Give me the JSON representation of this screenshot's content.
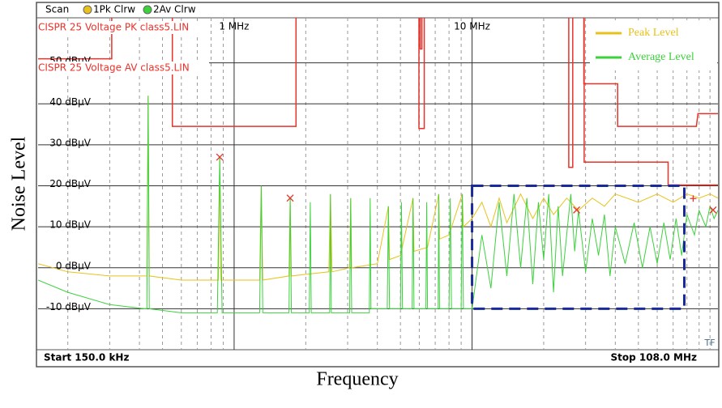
{
  "chart_data": {
    "type": "line",
    "header": {
      "title": "Scan",
      "trace1": "1Pk Clrw",
      "trace2": "2Av Clrw"
    },
    "x_label": "Frequency",
    "y_label": "Noise Level",
    "start_label": "Start 150.0 kHz",
    "stop_label": "Stop 108.0 MHz",
    "corner_label": "TF",
    "log_x": true,
    "grid": true,
    "legend": "top-right",
    "xlim": [
      0.15,
      108
    ],
    "ylim": [
      -20,
      61
    ],
    "xticks": [
      {
        "value": 1,
        "label": "1 MHz"
      },
      {
        "value": 10,
        "label": "10 MHz"
      }
    ],
    "x_minor_gridlines": [
      0.2,
      0.3,
      0.4,
      0.5,
      0.6,
      0.7,
      0.8,
      0.9,
      2,
      3,
      4,
      5,
      6,
      7,
      8,
      9,
      20,
      30,
      40,
      50,
      60,
      70,
      80,
      90,
      100
    ],
    "yticks": [
      {
        "value": -10,
        "label": "-10 dBµV"
      },
      {
        "value": 0,
        "label": "0 dBµV"
      },
      {
        "value": 10,
        "label": "10 dBµV"
      },
      {
        "value": 20,
        "label": "20 dBµV"
      },
      {
        "value": 30,
        "label": "30 dBµV"
      },
      {
        "value": 40,
        "label": "40 dBµV"
      },
      {
        "value": 50,
        "label": "50 dBµV"
      }
    ],
    "series": [
      {
        "name": "Peak Level",
        "color": "#e8c21a",
        "x": [
          0.15,
          0.2,
          0.3,
          0.43,
          0.435,
          0.44,
          0.6,
          0.86,
          0.87,
          0.88,
          1.28,
          1.3,
          1.32,
          1.7,
          1.72,
          1.74,
          2.5,
          2.54,
          2.58,
          3.06,
          3.09,
          3.12,
          4,
          4.45,
          4.5,
          5,
          5.65,
          5.7,
          6.5,
          7.25,
          7.3,
          8,
          9.1,
          9.2,
          10,
          11,
          12,
          13,
          14,
          16,
          18,
          20,
          22,
          25,
          28,
          32,
          36,
          40,
          50,
          60,
          70,
          80,
          90,
          100,
          108
        ],
        "values": [
          1,
          -1,
          -2,
          -2,
          42,
          -2,
          -3,
          -3,
          27,
          -3,
          -3,
          20,
          -3,
          -2,
          17,
          -2,
          -1,
          18,
          -1,
          0,
          17,
          0,
          1,
          15,
          2,
          3,
          17,
          4,
          5,
          18,
          7,
          8,
          18,
          10,
          12,
          16,
          10,
          17,
          11,
          18,
          12,
          17,
          13,
          17,
          14,
          17,
          15,
          18,
          16,
          18,
          16,
          18,
          17,
          18,
          17
        ]
      },
      {
        "name": "Average Level",
        "color": "#3cd23c",
        "x": [
          0.15,
          0.2,
          0.3,
          0.42,
          0.43,
          0.435,
          0.44,
          0.6,
          0.85,
          0.87,
          0.89,
          1.28,
          1.3,
          1.32,
          1.7,
          1.72,
          1.74,
          2.07,
          2.09,
          2.11,
          2.52,
          2.54,
          2.56,
          3.06,
          3.09,
          3.12,
          3.7,
          3.73,
          3.76,
          4.4,
          4.45,
          4.5,
          5,
          5.05,
          5.1,
          5.6,
          5.65,
          5.7,
          6.4,
          6.45,
          6.5,
          7.2,
          7.25,
          7.3,
          8,
          8.1,
          8.2,
          9,
          9.1,
          9.2,
          10,
          11,
          12,
          13,
          14,
          15,
          16,
          17,
          18,
          19,
          20,
          21,
          22,
          23,
          24,
          26,
          27,
          28,
          30,
          32,
          34,
          36,
          38,
          40,
          44,
          48,
          52,
          56,
          60,
          64,
          68,
          72,
          76,
          80,
          86,
          90,
          96,
          100,
          104,
          108
        ],
        "values": [
          -3,
          -6,
          -9,
          -10,
          -10,
          42,
          -10,
          -11,
          -11,
          27,
          -11,
          -11,
          20,
          -11,
          -11,
          17,
          -11,
          -11,
          16,
          -11,
          -11,
          18,
          -11,
          -11,
          17,
          -11,
          -11,
          17,
          -10,
          -10,
          15,
          -10,
          -10,
          16,
          -10,
          -10,
          17,
          -10,
          -10,
          16,
          -10,
          -10,
          18,
          -10,
          -10,
          17,
          -10,
          -10,
          18,
          -10,
          -10,
          8,
          -5,
          16,
          -2,
          18,
          0,
          17,
          -4,
          16,
          2,
          18,
          -6,
          15,
          -2,
          18,
          4,
          14,
          -1,
          12,
          3,
          13,
          -2,
          10,
          1,
          11,
          0,
          10,
          1,
          11,
          2,
          12,
          3,
          13,
          8,
          14,
          10,
          15,
          12,
          14
        ]
      }
    ],
    "limit_lines": [
      {
        "name": "CISPR 25 Voltage PK class5.LIN",
        "color": "#e8322a",
        "x": [
          0.15,
          0.306,
          0.306,
          0.4,
          0.55,
          0.55,
          1.82,
          1.82,
          3,
          5.98,
          5.98,
          6.3,
          6.3,
          15,
          25.5,
          25.5,
          26.5,
          26.5,
          27,
          29.5,
          29.5,
          40.9,
          40.9,
          87.7,
          89,
          108
        ],
        "values": [
          51,
          51,
          61,
          null,
          61,
          34.5,
          34.5,
          61,
          null,
          61,
          34,
          34,
          61,
          null,
          61,
          24.5,
          24.5,
          61,
          null,
          61,
          44.9,
          44.9,
          34.5,
          34.5,
          37.6,
          37.6
        ]
      },
      {
        "name": "CISPR 25 Voltage AV class5.LIN",
        "color": "#e8322a",
        "x": [
          6.05,
          6.05,
          6.15,
          6.15,
          20,
          29.6,
          29.6,
          66.7,
          66.7,
          108
        ],
        "values": [
          61,
          53.4,
          53.4,
          61,
          null,
          61,
          25.8,
          25.8,
          20.2,
          20.2
        ]
      }
    ],
    "markers": [
      {
        "x": 0.87,
        "value": 27,
        "shape": "x"
      },
      {
        "x": 1.72,
        "value": 17,
        "shape": "x"
      },
      {
        "x": 27.5,
        "value": 14.1,
        "shape": "x"
      },
      {
        "x": 85,
        "value": 16.9,
        "shape": "+"
      },
      {
        "x": 103,
        "value": 14.1,
        "shape": "x"
      }
    ],
    "highlight_box": {
      "color": "#1a2a9a",
      "xlim": [
        10,
        78
      ],
      "ylim": [
        -10,
        20
      ]
    }
  }
}
